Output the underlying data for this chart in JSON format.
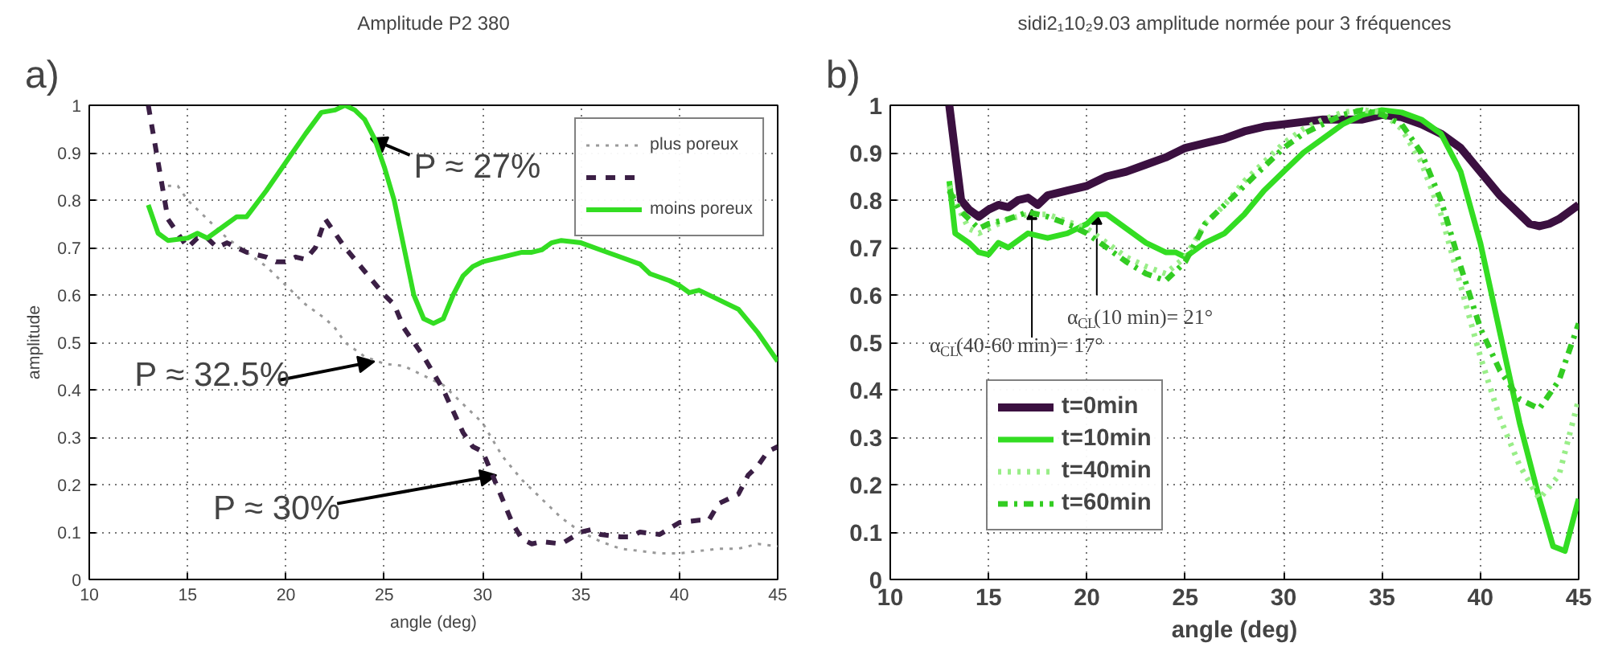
{
  "chart_data": [
    {
      "type": "line",
      "title": "Amplitude P2 380",
      "xlabel": "angle (deg)",
      "ylabel": "amplitude",
      "xlim": [
        10,
        45
      ],
      "ylim": [
        0,
        1
      ],
      "xticks": [
        10,
        15,
        20,
        25,
        30,
        35,
        40,
        45
      ],
      "yticks": [
        0,
        0.1,
        0.2,
        0.3,
        0.4,
        0.5,
        0.6,
        0.7,
        0.8,
        0.9,
        1
      ],
      "grid": true,
      "legend": "top right",
      "annotations": [
        "a)",
        {
          "text": "P ≈ 27%",
          "x": 24.3,
          "y": 0.93
        },
        {
          "text": "P ≈ 32.5%",
          "x": 24.5,
          "y": 0.46
        },
        {
          "text": "P ≈ 30%",
          "x": 30.7,
          "y": 0.22
        }
      ],
      "series": [
        {
          "name": "plus poreux",
          "color": "#999999",
          "line_style": "dotted",
          "x": [
            14,
            14.5,
            15,
            16,
            17,
            18,
            19,
            20,
            21,
            22,
            22.5,
            23,
            24,
            25,
            26,
            27,
            28,
            29,
            30,
            31,
            32,
            33,
            34,
            35,
            36,
            37,
            38,
            39,
            40,
            41,
            42,
            43,
            44,
            45
          ],
          "values": [
            0.83,
            0.83,
            0.8,
            0.76,
            0.72,
            0.69,
            0.66,
            0.62,
            0.58,
            0.55,
            0.53,
            0.5,
            0.47,
            0.455,
            0.45,
            0.43,
            0.41,
            0.37,
            0.33,
            0.26,
            0.21,
            0.17,
            0.13,
            0.1,
            0.08,
            0.065,
            0.06,
            0.055,
            0.055,
            0.06,
            0.065,
            0.065,
            0.075,
            0.07
          ]
        },
        {
          "color": "#3b1f45",
          "line_style": "dashed",
          "x": [
            13,
            13.5,
            14,
            14.5,
            15,
            15.5,
            16,
            16.5,
            17,
            18,
            19,
            19.5,
            20,
            20.5,
            21,
            21.5,
            22,
            22.5,
            23,
            24,
            25,
            25.5,
            26,
            27,
            28,
            29,
            29.5,
            30,
            30.5,
            31,
            31.5,
            32,
            32.5,
            33,
            34,
            35,
            35.5,
            36,
            37,
            37.5,
            38,
            39,
            40,
            41,
            41.5,
            42,
            43,
            43.5,
            44,
            44.5,
            45
          ],
          "values": [
            1.0,
            0.88,
            0.76,
            0.73,
            0.7,
            0.72,
            0.72,
            0.7,
            0.71,
            0.69,
            0.68,
            0.67,
            0.67,
            0.68,
            0.675,
            0.7,
            0.76,
            0.73,
            0.7,
            0.65,
            0.6,
            0.58,
            0.53,
            0.47,
            0.4,
            0.31,
            0.28,
            0.27,
            0.22,
            0.17,
            0.12,
            0.085,
            0.075,
            0.08,
            0.075,
            0.1,
            0.105,
            0.095,
            0.09,
            0.09,
            0.1,
            0.095,
            0.12,
            0.125,
            0.125,
            0.16,
            0.18,
            0.22,
            0.24,
            0.27,
            0.28
          ]
        },
        {
          "name": "moins poreux",
          "color": "#33dd22",
          "line_style": "solid",
          "x": [
            13,
            13.5,
            14,
            15,
            15.5,
            16,
            17,
            17.5,
            18,
            19,
            20,
            21,
            21.8,
            22.5,
            23,
            23.5,
            24,
            24.5,
            25,
            25.5,
            26,
            26.5,
            27,
            27.5,
            28,
            28.5,
            29,
            29.5,
            30,
            31,
            32,
            32.5,
            33,
            33.5,
            34,
            35,
            36,
            37,
            38,
            38.5,
            39.5,
            40,
            40.5,
            41,
            42,
            43,
            44,
            45
          ],
          "values": [
            0.79,
            0.73,
            0.715,
            0.72,
            0.73,
            0.72,
            0.75,
            0.765,
            0.765,
            0.82,
            0.88,
            0.94,
            0.985,
            0.99,
            1.0,
            0.99,
            0.97,
            0.93,
            0.87,
            0.8,
            0.7,
            0.6,
            0.55,
            0.54,
            0.55,
            0.6,
            0.64,
            0.66,
            0.67,
            0.68,
            0.69,
            0.69,
            0.695,
            0.71,
            0.715,
            0.71,
            0.695,
            0.68,
            0.665,
            0.645,
            0.63,
            0.62,
            0.605,
            0.61,
            0.59,
            0.57,
            0.52,
            0.46
          ]
        }
      ]
    },
    {
      "type": "line",
      "title": "sidi2₁10₂9.03 amplitude normée pour 3 fréquences",
      "xlabel": "angle (deg)",
      "xlim": [
        10,
        45
      ],
      "ylim": [
        0,
        1
      ],
      "xticks": [
        10,
        15,
        20,
        25,
        30,
        35,
        40,
        45
      ],
      "yticks": [
        0,
        0.1,
        0.2,
        0.3,
        0.4,
        0.5,
        0.6,
        0.7,
        0.8,
        0.9,
        1
      ],
      "grid": true,
      "legend": "bottom left",
      "annotations": [
        "b)",
        {
          "text": "α$_{CL}$(10 min)= 21°",
          "x": 20.5,
          "y": 0.77
        },
        {
          "text": "α$_{CL}$(40-60 min)= 17°",
          "x": 17.2,
          "y": 0.78
        }
      ],
      "series": [
        {
          "name": "t=0min",
          "color": "#3b1040",
          "line_style": "solid",
          "x": [
            13,
            13.3,
            13.6,
            14,
            14.5,
            15,
            15.5,
            16,
            16.5,
            17,
            17.5,
            18,
            19,
            20,
            21,
            22,
            23,
            24,
            25,
            26,
            27,
            28,
            29,
            30,
            31,
            32,
            33,
            34,
            35,
            36,
            37,
            38,
            39,
            40,
            41,
            42,
            42.5,
            43,
            43.5,
            44,
            45
          ],
          "values": [
            1.0,
            0.9,
            0.8,
            0.78,
            0.765,
            0.78,
            0.79,
            0.785,
            0.8,
            0.805,
            0.79,
            0.81,
            0.82,
            0.83,
            0.85,
            0.86,
            0.875,
            0.89,
            0.91,
            0.92,
            0.93,
            0.945,
            0.955,
            0.96,
            0.965,
            0.97,
            0.97,
            0.97,
            0.98,
            0.975,
            0.96,
            0.94,
            0.91,
            0.86,
            0.81,
            0.77,
            0.75,
            0.745,
            0.75,
            0.76,
            0.79
          ]
        },
        {
          "name": "t=10min",
          "color": "#33dd22",
          "line_style": "solid",
          "x": [
            13,
            13.3,
            14,
            14.5,
            15,
            15.5,
            16,
            17,
            18,
            19,
            20,
            20.5,
            21,
            22,
            23,
            24,
            24.5,
            25,
            26,
            27,
            28,
            29,
            30,
            31,
            32,
            33,
            34,
            35,
            36,
            37,
            38,
            39,
            40,
            41,
            42,
            43,
            43.7,
            44.3,
            45
          ],
          "values": [
            0.84,
            0.73,
            0.71,
            0.69,
            0.685,
            0.71,
            0.7,
            0.73,
            0.72,
            0.73,
            0.75,
            0.77,
            0.77,
            0.74,
            0.71,
            0.69,
            0.69,
            0.68,
            0.71,
            0.73,
            0.77,
            0.82,
            0.86,
            0.9,
            0.93,
            0.96,
            0.98,
            0.99,
            0.985,
            0.97,
            0.94,
            0.86,
            0.71,
            0.52,
            0.33,
            0.17,
            0.07,
            0.06,
            0.17
          ]
        },
        {
          "name": "t=40min",
          "color": "#99ee88",
          "line_style": "dotted",
          "x": [
            13,
            13.5,
            14,
            14.5,
            15,
            16,
            17,
            18,
            19,
            20,
            21,
            22,
            23,
            24,
            25,
            26,
            27,
            28,
            29,
            30,
            31,
            32,
            33,
            34,
            35,
            36,
            37,
            38,
            39,
            40,
            41,
            42,
            43,
            44,
            45
          ],
          "values": [
            0.83,
            0.78,
            0.74,
            0.73,
            0.74,
            0.76,
            0.77,
            0.77,
            0.755,
            0.74,
            0.71,
            0.68,
            0.66,
            0.645,
            0.68,
            0.75,
            0.79,
            0.84,
            0.88,
            0.92,
            0.95,
            0.97,
            0.985,
            0.99,
            0.985,
            0.95,
            0.88,
            0.77,
            0.62,
            0.47,
            0.34,
            0.24,
            0.17,
            0.22,
            0.38
          ]
        },
        {
          "name": "t=60min",
          "color": "#33cc22",
          "line_style": "dashdot",
          "x": [
            13,
            13.5,
            14,
            14.5,
            15,
            16,
            17,
            18,
            19,
            20,
            21,
            22,
            23,
            24,
            25,
            26,
            27,
            28,
            29,
            30,
            31,
            32,
            33,
            34,
            35,
            36,
            37,
            38,
            39,
            40,
            41,
            42,
            43,
            44,
            45
          ],
          "values": [
            0.82,
            0.78,
            0.76,
            0.74,
            0.75,
            0.76,
            0.775,
            0.765,
            0.75,
            0.73,
            0.7,
            0.67,
            0.645,
            0.63,
            0.67,
            0.75,
            0.79,
            0.83,
            0.87,
            0.91,
            0.94,
            0.96,
            0.98,
            0.99,
            0.98,
            0.96,
            0.9,
            0.8,
            0.66,
            0.53,
            0.44,
            0.38,
            0.36,
            0.42,
            0.54
          ]
        }
      ]
    }
  ]
}
